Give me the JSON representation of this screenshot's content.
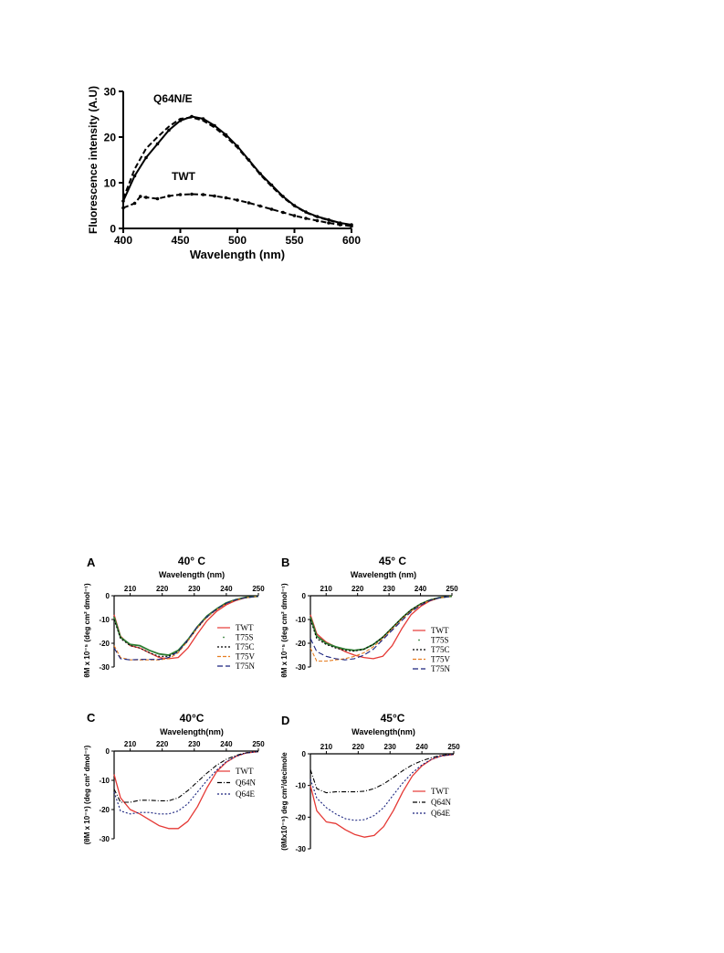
{
  "fluorescence": {
    "type": "line",
    "xlabel": "Wavelength (nm)",
    "ylabel": "Fluorescence intensity (A.U)",
    "xlim": [
      400,
      600
    ],
    "ylim": [
      0,
      30
    ],
    "xticks": [
      "400",
      "450",
      "500",
      "550",
      "600"
    ],
    "yticks": [
      "0",
      "10",
      "20",
      "30"
    ],
    "annotations": [
      "Q64N/E",
      "TWT"
    ],
    "series": [
      {
        "style": "solid-dots",
        "x": [
          400,
          410,
          420,
          430,
          440,
          450,
          460,
          470,
          480,
          490,
          500,
          510,
          520,
          530,
          540,
          550,
          560,
          570,
          580,
          590,
          600
        ],
        "y": [
          6,
          11.5,
          15.5,
          18.5,
          21.5,
          23.6,
          24.5,
          24,
          22.5,
          20.5,
          18,
          15,
          12,
          9.5,
          7,
          5,
          3.6,
          2.6,
          1.9,
          1.2,
          0.8
        ]
      },
      {
        "style": "dashed",
        "x": [
          400,
          410,
          420,
          430,
          440,
          450,
          460,
          470,
          480,
          490,
          500,
          510,
          520,
          530,
          540,
          550,
          560,
          570,
          580,
          590,
          600
        ],
        "y": [
          6.5,
          13,
          17.5,
          20,
          22.3,
          24,
          24.3,
          23.6,
          22.1,
          20.1,
          17.7,
          14.8,
          11.8,
          9.2,
          6.8,
          4.9,
          3.5,
          2.5,
          1.8,
          1.1,
          0.7
        ]
      },
      {
        "style": "dashed-dots",
        "x": [
          400,
          410,
          415,
          420,
          430,
          440,
          450,
          460,
          470,
          480,
          490,
          500,
          510,
          520,
          530,
          540,
          550,
          560,
          570,
          580,
          590,
          600
        ],
        "y": [
          4.5,
          5.5,
          7,
          6.8,
          6.5,
          7.1,
          7.4,
          7.5,
          7.4,
          7.1,
          6.7,
          6.2,
          5.6,
          4.9,
          4.2,
          3.5,
          2.8,
          2.2,
          1.7,
          1.2,
          0.8,
          0.5
        ]
      }
    ]
  },
  "cd_common": {
    "xlabel_tag": "Wavelength (nm)",
    "xlim": [
      205,
      250
    ],
    "ylim": [
      -30,
      0
    ],
    "xticks": [
      "210",
      "220",
      "230",
      "240",
      "250"
    ],
    "yticks": [
      "0",
      "-10",
      "-20",
      "-30"
    ]
  },
  "panels": [
    {
      "letter": "A",
      "title": "40° C",
      "xlabel": "Wavelength (nm)",
      "ylabel": "θM x 10⁻⁵ (deg cm² dmol⁻¹)",
      "legend": [
        "TWT",
        "T75S",
        "T75C",
        "T75V",
        "T75N"
      ],
      "colors": [
        "#e53935",
        "#2e7d32",
        "#000000",
        "#e67e22",
        "#1a237e"
      ],
      "series": [
        {
          "name": "TWT",
          "x": [
            205,
            207,
            210,
            213,
            216,
            219,
            222,
            225,
            228,
            231,
            234,
            237,
            240,
            243,
            246,
            250
          ],
          "y": [
            -8,
            -17,
            -21,
            -22,
            -24,
            -26,
            -26.5,
            -26,
            -22,
            -16,
            -10.5,
            -6.5,
            -3.8,
            -2,
            -0.8,
            -0.2
          ]
        },
        {
          "name": "T75S",
          "x": [
            205,
            207,
            210,
            213,
            216,
            219,
            222,
            225,
            228,
            231,
            234,
            237,
            240,
            243,
            246,
            250
          ],
          "y": [
            -9,
            -17.5,
            -20.5,
            -21,
            -23,
            -24.5,
            -25,
            -23,
            -18.5,
            -13,
            -8.5,
            -5.5,
            -3,
            -1.6,
            -0.7,
            -0.2
          ]
        },
        {
          "name": "T75C",
          "x": [
            205,
            207,
            210,
            213,
            216,
            219,
            222,
            225,
            228,
            231,
            234,
            237,
            240,
            243,
            246,
            250
          ],
          "y": [
            -10,
            -18,
            -21,
            -22,
            -24,
            -25.5,
            -25.5,
            -23.5,
            -19,
            -13.5,
            -9,
            -5.8,
            -3.2,
            -1.7,
            -0.8,
            -0.2
          ]
        },
        {
          "name": "T75V",
          "x": [
            205,
            207,
            210,
            213,
            216,
            219,
            222,
            225,
            228,
            231,
            234,
            237,
            240,
            243,
            246,
            250
          ],
          "y": [
            -21,
            -26,
            -27,
            -27,
            -27,
            -27,
            -26.5,
            -24,
            -19,
            -13.5,
            -9,
            -5.8,
            -3.3,
            -1.7,
            -0.8,
            -0.2
          ]
        },
        {
          "name": "T75N",
          "x": [
            205,
            207,
            210,
            213,
            216,
            219,
            222,
            225,
            228,
            231,
            234,
            237,
            240,
            243,
            246,
            250
          ],
          "y": [
            -22,
            -26.5,
            -27,
            -26.8,
            -26.8,
            -26.8,
            -26,
            -23.5,
            -18.5,
            -13,
            -8.8,
            -5.6,
            -3.2,
            -1.7,
            -0.8,
            -0.2
          ]
        }
      ]
    },
    {
      "letter": "B",
      "title": "45° C",
      "xlabel": "Wavelength (nm)",
      "ylabel": "θM x 10⁻⁵ (deg cm² dmol⁻¹)",
      "legend": [
        "TWT",
        "T75S",
        "T75C",
        "T75V",
        "T75N"
      ],
      "colors": [
        "#e53935",
        "#2e7d32",
        "#000000",
        "#e67e22",
        "#1a237e"
      ],
      "series": [
        {
          "name": "TWT",
          "x": [
            205,
            207,
            210,
            213,
            216,
            219,
            222,
            225,
            228,
            231,
            234,
            237,
            240,
            243,
            246,
            250
          ],
          "y": [
            -8,
            -16,
            -19.5,
            -21.5,
            -23.5,
            -25,
            -26,
            -26.5,
            -25.5,
            -21,
            -14,
            -8,
            -4.5,
            -2.2,
            -0.9,
            -0.2
          ]
        },
        {
          "name": "T75S",
          "x": [
            205,
            207,
            210,
            213,
            216,
            219,
            222,
            225,
            228,
            231,
            234,
            237,
            240,
            243,
            246,
            250
          ],
          "y": [
            -9,
            -17,
            -20,
            -21.5,
            -22.5,
            -23,
            -22.5,
            -20.5,
            -17.5,
            -13.5,
            -9.5,
            -6,
            -3.5,
            -1.8,
            -0.8,
            -0.2
          ]
        },
        {
          "name": "T75C",
          "x": [
            205,
            207,
            210,
            213,
            216,
            219,
            222,
            225,
            228,
            231,
            234,
            237,
            240,
            243,
            246,
            250
          ],
          "y": [
            -10,
            -18,
            -20.5,
            -22,
            -23,
            -23.3,
            -22.5,
            -20.5,
            -17.5,
            -13.5,
            -9.5,
            -6,
            -3.5,
            -1.8,
            -0.8,
            -0.2
          ]
        },
        {
          "name": "T75V",
          "x": [
            205,
            207,
            210,
            213,
            216,
            219,
            222,
            225,
            228,
            231,
            234,
            237,
            240,
            243,
            246,
            250
          ],
          "y": [
            -22,
            -27.5,
            -27.5,
            -27,
            -26.5,
            -25.5,
            -24,
            -21.5,
            -18,
            -14,
            -10,
            -6.5,
            -3.8,
            -2,
            -0.9,
            -0.2
          ]
        },
        {
          "name": "T75N",
          "x": [
            205,
            207,
            210,
            213,
            216,
            219,
            222,
            225,
            228,
            231,
            234,
            237,
            240,
            243,
            246,
            250
          ],
          "y": [
            -18,
            -23.5,
            -25.5,
            -26.5,
            -27,
            -26.5,
            -25,
            -22.5,
            -18.5,
            -14.5,
            -10.5,
            -6.8,
            -4,
            -2,
            -0.9,
            -0.2
          ]
        }
      ]
    },
    {
      "letter": "C",
      "title": "40°C",
      "xlabel": "Wavelength(nm)",
      "ylabel": "(θM x 10⁻⁵) (deg cm² dmol⁻¹)",
      "legend": [
        "TWT",
        "Q64N",
        "Q64E"
      ],
      "colors": [
        "#e53935",
        "#000000",
        "#1a237e"
      ],
      "series": [
        {
          "name": "TWT",
          "x": [
            205,
            207,
            210,
            213,
            216,
            219,
            222,
            225,
            228,
            231,
            234,
            237,
            240,
            243,
            246,
            250
          ],
          "y": [
            -8,
            -16,
            -20,
            -21.5,
            -23.5,
            -25.5,
            -26.5,
            -26.5,
            -24,
            -19,
            -12.5,
            -7,
            -3.8,
            -1.8,
            -0.7,
            -0.2
          ]
        },
        {
          "name": "Q64N",
          "x": [
            205,
            207,
            210,
            213,
            216,
            219,
            222,
            225,
            228,
            231,
            234,
            237,
            240,
            243,
            246,
            250
          ],
          "y": [
            -13,
            -17.5,
            -17.5,
            -16.8,
            -16.8,
            -17,
            -17,
            -16,
            -13.5,
            -10.5,
            -7.5,
            -4.8,
            -2.8,
            -1.5,
            -0.6,
            -0.2
          ]
        },
        {
          "name": "Q64E",
          "x": [
            205,
            207,
            210,
            213,
            216,
            219,
            222,
            225,
            228,
            231,
            234,
            237,
            240,
            243,
            246,
            250
          ],
          "y": [
            -14,
            -20.5,
            -21.5,
            -21,
            -21,
            -21.5,
            -21.5,
            -20.5,
            -18,
            -14,
            -10,
            -6.5,
            -3.6,
            -1.8,
            -0.7,
            -0.2
          ]
        }
      ]
    },
    {
      "letter": "D",
      "title": "45°C",
      "xlabel": "Wavelength(nm)",
      "ylabel": "(θMx10⁻⁵) deg cm²/decimole",
      "legend": [
        "TWT",
        "Q64N",
        "Q64E"
      ],
      "colors": [
        "#e53935",
        "#000000",
        "#1a237e"
      ],
      "series": [
        {
          "name": "TWT",
          "x": [
            205,
            207,
            210,
            213,
            216,
            219,
            222,
            225,
            228,
            231,
            234,
            237,
            240,
            243,
            246,
            250
          ],
          "y": [
            -10,
            -18,
            -21.5,
            -22,
            -24,
            -25.5,
            -26.3,
            -25.8,
            -23,
            -18,
            -12,
            -7,
            -3.8,
            -1.8,
            -0.7,
            -0.2
          ]
        },
        {
          "name": "Q64N",
          "x": [
            205,
            207,
            210,
            213,
            216,
            219,
            222,
            225,
            228,
            231,
            234,
            237,
            240,
            243,
            246,
            250
          ],
          "y": [
            -5,
            -11,
            -12.3,
            -12,
            -12,
            -12,
            -11.8,
            -11,
            -9.5,
            -7.5,
            -5.3,
            -3.5,
            -2.2,
            -1.2,
            -0.5,
            -0.1
          ]
        },
        {
          "name": "Q64E",
          "x": [
            205,
            207,
            210,
            213,
            216,
            219,
            222,
            225,
            228,
            231,
            234,
            237,
            240,
            243,
            246,
            250
          ],
          "y": [
            -8,
            -14,
            -17,
            -19,
            -20.5,
            -21,
            -20.8,
            -19.5,
            -17,
            -13,
            -9.2,
            -6,
            -3.5,
            -1.7,
            -0.7,
            -0.2
          ]
        }
      ]
    }
  ]
}
